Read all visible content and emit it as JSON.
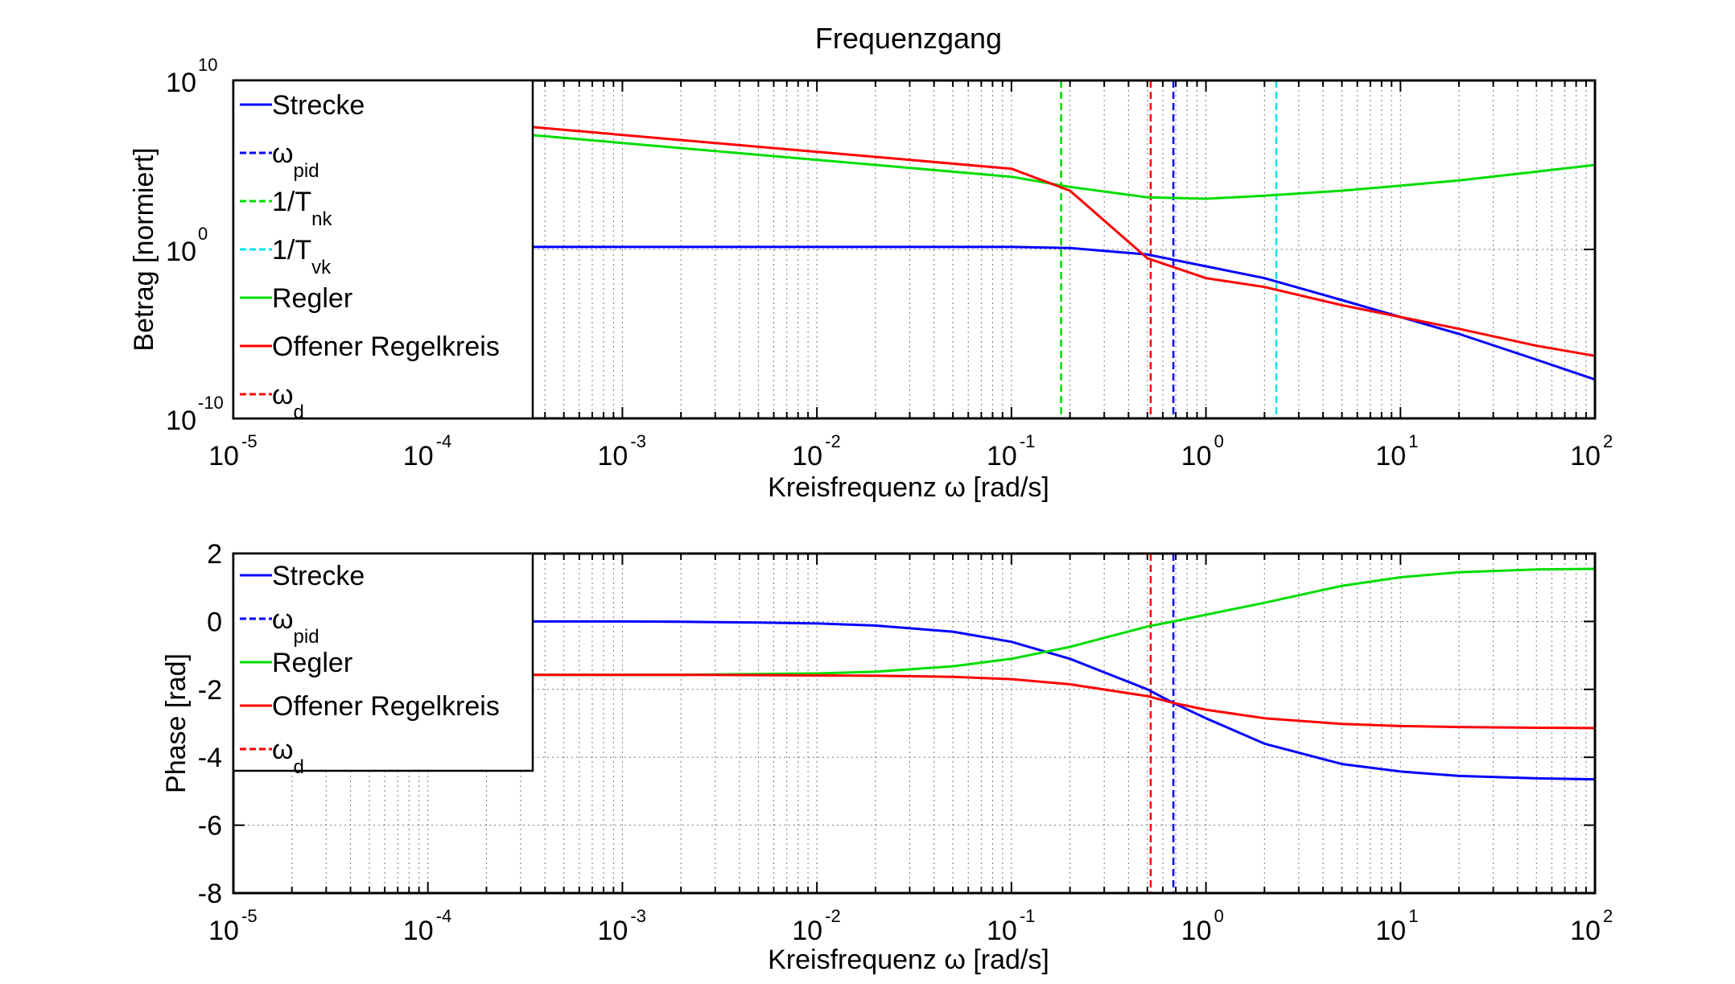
{
  "chart_data": [
    {
      "type": "line",
      "title": "Frequenzgang",
      "xlabel": "Kreisfrequenz ω [rad/s]",
      "ylabel": "Betrag [normiert]",
      "xscale": "log",
      "yscale": "log",
      "xlim": [
        1e-05,
        100
      ],
      "ylim": [
        1e-10,
        10000000000.0
      ],
      "grid": true,
      "legend_position": "top-left",
      "x_ticks": [
        {
          "base": "10",
          "exp": "-5"
        },
        {
          "base": "10",
          "exp": "-4"
        },
        {
          "base": "10",
          "exp": "-3"
        },
        {
          "base": "10",
          "exp": "-2"
        },
        {
          "base": "10",
          "exp": "-1"
        },
        {
          "base": "10",
          "exp": "0"
        },
        {
          "base": "10",
          "exp": "1"
        },
        {
          "base": "10",
          "exp": "2"
        }
      ],
      "y_ticks": [
        {
          "base": "10",
          "exp": "-10"
        },
        {
          "base": "10",
          "exp": "0"
        },
        {
          "base": "10",
          "exp": "10"
        }
      ],
      "legend": [
        {
          "label": "Strecke",
          "sub": "",
          "color": "#0000ff",
          "style": "solid"
        },
        {
          "label": "ω",
          "sub": "pid",
          "color": "#0000ff",
          "style": "dashed"
        },
        {
          "label": "1/T",
          "sub": "nk",
          "color": "#00dd00",
          "style": "dashed"
        },
        {
          "label": "1/T",
          "sub": "vk",
          "color": "#00e5ee",
          "style": "dashed"
        },
        {
          "label": "Regler",
          "sub": "",
          "color": "#00dd00",
          "style": "solid"
        },
        {
          "label": "Offener Regelkreis",
          "sub": "",
          "color": "#ff0000",
          "style": "solid"
        },
        {
          "label": "ω",
          "sub": "d",
          "color": "#ff0000",
          "style": "dashed"
        }
      ],
      "vlines": [
        {
          "x": 0.18,
          "color": "#00dd00"
        },
        {
          "x": 0.52,
          "color": "#ff0000"
        },
        {
          "x": 0.68,
          "color": "#0000ff"
        },
        {
          "x": 2.3,
          "color": "#00e5ee"
        }
      ],
      "series": [
        {
          "color": "#0000ff",
          "x": [
            1e-05,
            0.0001,
            0.001,
            0.01,
            0.1,
            0.2,
            0.5,
            1,
            2,
            5,
            10,
            20,
            50,
            100
          ],
          "y": [
            1.4,
            1.4,
            1.4,
            1.4,
            1.4,
            1.2,
            0.5,
            0.1,
            0.02,
            0.001,
            0.0001,
            1e-05,
            3e-07,
            2e-08
          ]
        },
        {
          "color": "#00dd00",
          "x": [
            1e-05,
            0.0001,
            0.001,
            0.01,
            0.1,
            0.2,
            0.5,
            1,
            2,
            5,
            10,
            20,
            50,
            100
          ],
          "y": [
            200000000,
            20000000,
            2000000,
            200000,
            20000,
            5000,
            1200,
            1000,
            1500,
            3000,
            6000,
            12000,
            40000,
            100000
          ]
        },
        {
          "color": "#ff0000",
          "x": [
            1e-05,
            0.0001,
            0.001,
            0.01,
            0.1,
            0.2,
            0.5,
            1,
            2,
            5,
            10,
            20,
            50,
            100
          ],
          "y": [
            600000000,
            60000000,
            6000000,
            600000,
            60000,
            3000,
            0.3,
            0.02,
            0.006,
            0.0005,
            0.0001,
            2e-05,
            2e-06,
            5e-07
          ]
        }
      ]
    },
    {
      "type": "line",
      "xlabel": "Kreisfrequenz ω [rad/s]",
      "ylabel": "Phase [rad]",
      "xscale": "log",
      "xlim": [
        1e-05,
        100
      ],
      "ylim": [
        -8,
        2
      ],
      "grid": true,
      "legend_position": "top-left",
      "x_ticks": [
        {
          "base": "10",
          "exp": "-5"
        },
        {
          "base": "10",
          "exp": "-4"
        },
        {
          "base": "10",
          "exp": "-3"
        },
        {
          "base": "10",
          "exp": "-2"
        },
        {
          "base": "10",
          "exp": "-1"
        },
        {
          "base": "10",
          "exp": "0"
        },
        {
          "base": "10",
          "exp": "1"
        },
        {
          "base": "10",
          "exp": "2"
        }
      ],
      "y_ticks": [
        {
          "base": "2",
          "exp": ""
        },
        {
          "base": "0",
          "exp": ""
        },
        {
          "base": "-2",
          "exp": ""
        },
        {
          "base": "-4",
          "exp": ""
        },
        {
          "base": "-6",
          "exp": ""
        },
        {
          "base": "-8",
          "exp": ""
        }
      ],
      "legend": [
        {
          "label": "Strecke",
          "sub": "",
          "color": "#0000ff",
          "style": "solid"
        },
        {
          "label": "ω",
          "sub": "pid",
          "color": "#0000ff",
          "style": "dashed"
        },
        {
          "label": "Regler",
          "sub": "",
          "color": "#00dd00",
          "style": "solid"
        },
        {
          "label": "Offener Regelkreis",
          "sub": "",
          "color": "#ff0000",
          "style": "solid"
        },
        {
          "label": "ω",
          "sub": "d",
          "color": "#ff0000",
          "style": "dashed"
        }
      ],
      "vlines": [
        {
          "x": 0.52,
          "color": "#ff0000"
        },
        {
          "x": 0.68,
          "color": "#0000ff"
        }
      ],
      "series": [
        {
          "color": "#0000ff",
          "x": [
            1e-05,
            0.0001,
            0.001,
            0.002,
            0.005,
            0.01,
            0.02,
            0.05,
            0.1,
            0.2,
            0.5,
            0.68,
            1,
            2,
            5,
            10,
            20,
            50,
            100
          ],
          "y": [
            0,
            0,
            0,
            -0.01,
            -0.03,
            -0.06,
            -0.12,
            -0.3,
            -0.6,
            -1.1,
            -2.0,
            -2.4,
            -2.85,
            -3.6,
            -4.2,
            -4.42,
            -4.55,
            -4.62,
            -4.65
          ]
        },
        {
          "color": "#00dd00",
          "x": [
            1e-05,
            0.0001,
            0.001,
            0.002,
            0.005,
            0.01,
            0.02,
            0.05,
            0.1,
            0.2,
            0.5,
            0.68,
            1,
            2,
            5,
            10,
            20,
            50,
            100
          ],
          "y": [
            -1.57,
            -1.57,
            -1.57,
            -1.57,
            -1.55,
            -1.53,
            -1.48,
            -1.32,
            -1.1,
            -0.75,
            -0.15,
            0.0,
            0.2,
            0.55,
            1.05,
            1.3,
            1.45,
            1.53,
            1.55
          ]
        },
        {
          "color": "#ff0000",
          "x": [
            1e-05,
            0.0001,
            0.001,
            0.002,
            0.005,
            0.01,
            0.02,
            0.05,
            0.1,
            0.2,
            0.5,
            0.68,
            1,
            2,
            5,
            10,
            20,
            50,
            100
          ],
          "y": [
            -1.57,
            -1.57,
            -1.57,
            -1.57,
            -1.58,
            -1.59,
            -1.6,
            -1.63,
            -1.7,
            -1.85,
            -2.2,
            -2.4,
            -2.6,
            -2.85,
            -3.02,
            -3.08,
            -3.11,
            -3.13,
            -3.14
          ]
        }
      ]
    }
  ]
}
